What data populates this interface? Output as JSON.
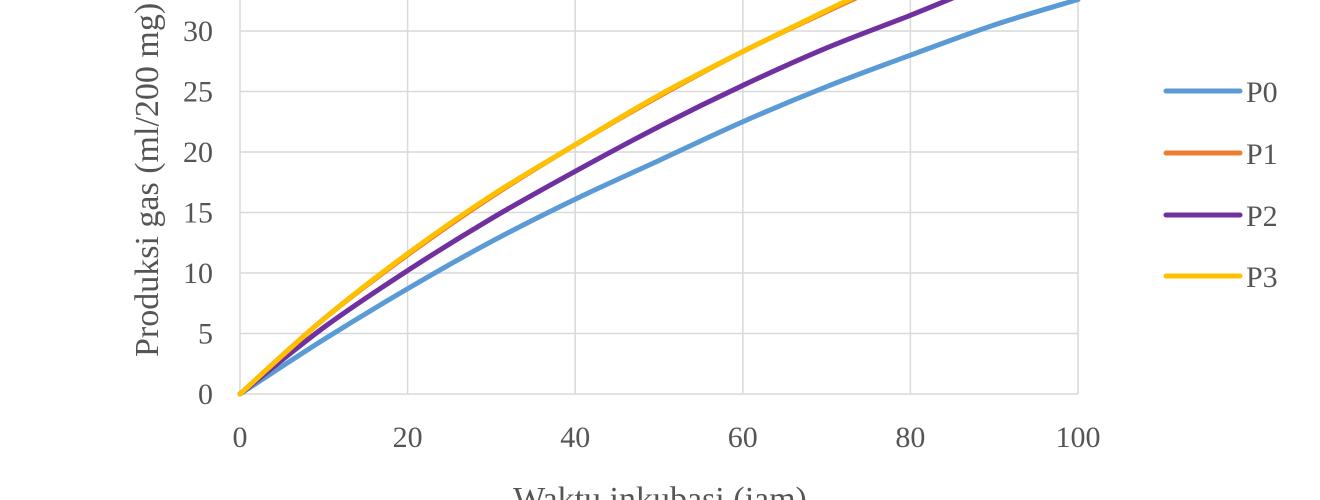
{
  "chart_data": {
    "type": "line",
    "xlabel": "Waktu inkubasi (jam)",
    "ylabel": "Produksi gas (ml/200 mg)",
    "xlim": [
      0,
      100
    ],
    "ylim": [
      0,
      35
    ],
    "x_ticks": [
      "0",
      "20",
      "40",
      "60",
      "80",
      "100"
    ],
    "y_ticks": [
      "0",
      "5",
      "10",
      "15",
      "20",
      "25",
      "30"
    ],
    "grid": true,
    "legend_position": "right",
    "series": [
      {
        "name": "P0",
        "color": "#5B9BD5",
        "x": [
          0,
          10,
          20,
          30,
          40,
          50,
          60,
          70,
          80,
          90,
          100
        ],
        "y": [
          0,
          4.5,
          8.7,
          12.6,
          16.1,
          19.3,
          22.5,
          25.4,
          28.0,
          30.5,
          32.6
        ]
      },
      {
        "name": "P1",
        "color": "#ED7D31",
        "x": [
          0,
          10,
          20,
          30,
          40,
          50,
          60,
          70,
          75
        ],
        "y": [
          0,
          6.2,
          11.5,
          16.3,
          20.6,
          24.6,
          28.3,
          31.6,
          33.2
        ]
      },
      {
        "name": "P2",
        "color": "#7030A0",
        "x": [
          0,
          10,
          20,
          30,
          40,
          50,
          60,
          70,
          80,
          86
        ],
        "y": [
          0,
          5.5,
          10.2,
          14.5,
          18.4,
          22.1,
          25.5,
          28.6,
          31.3,
          33.0
        ]
      },
      {
        "name": "P3",
        "color": "#FFC000",
        "x": [
          0,
          10,
          20,
          30,
          40,
          50,
          60,
          70,
          73
        ],
        "y": [
          0,
          6.2,
          11.6,
          16.4,
          20.6,
          24.7,
          28.3,
          31.7,
          32.7
        ]
      }
    ]
  }
}
